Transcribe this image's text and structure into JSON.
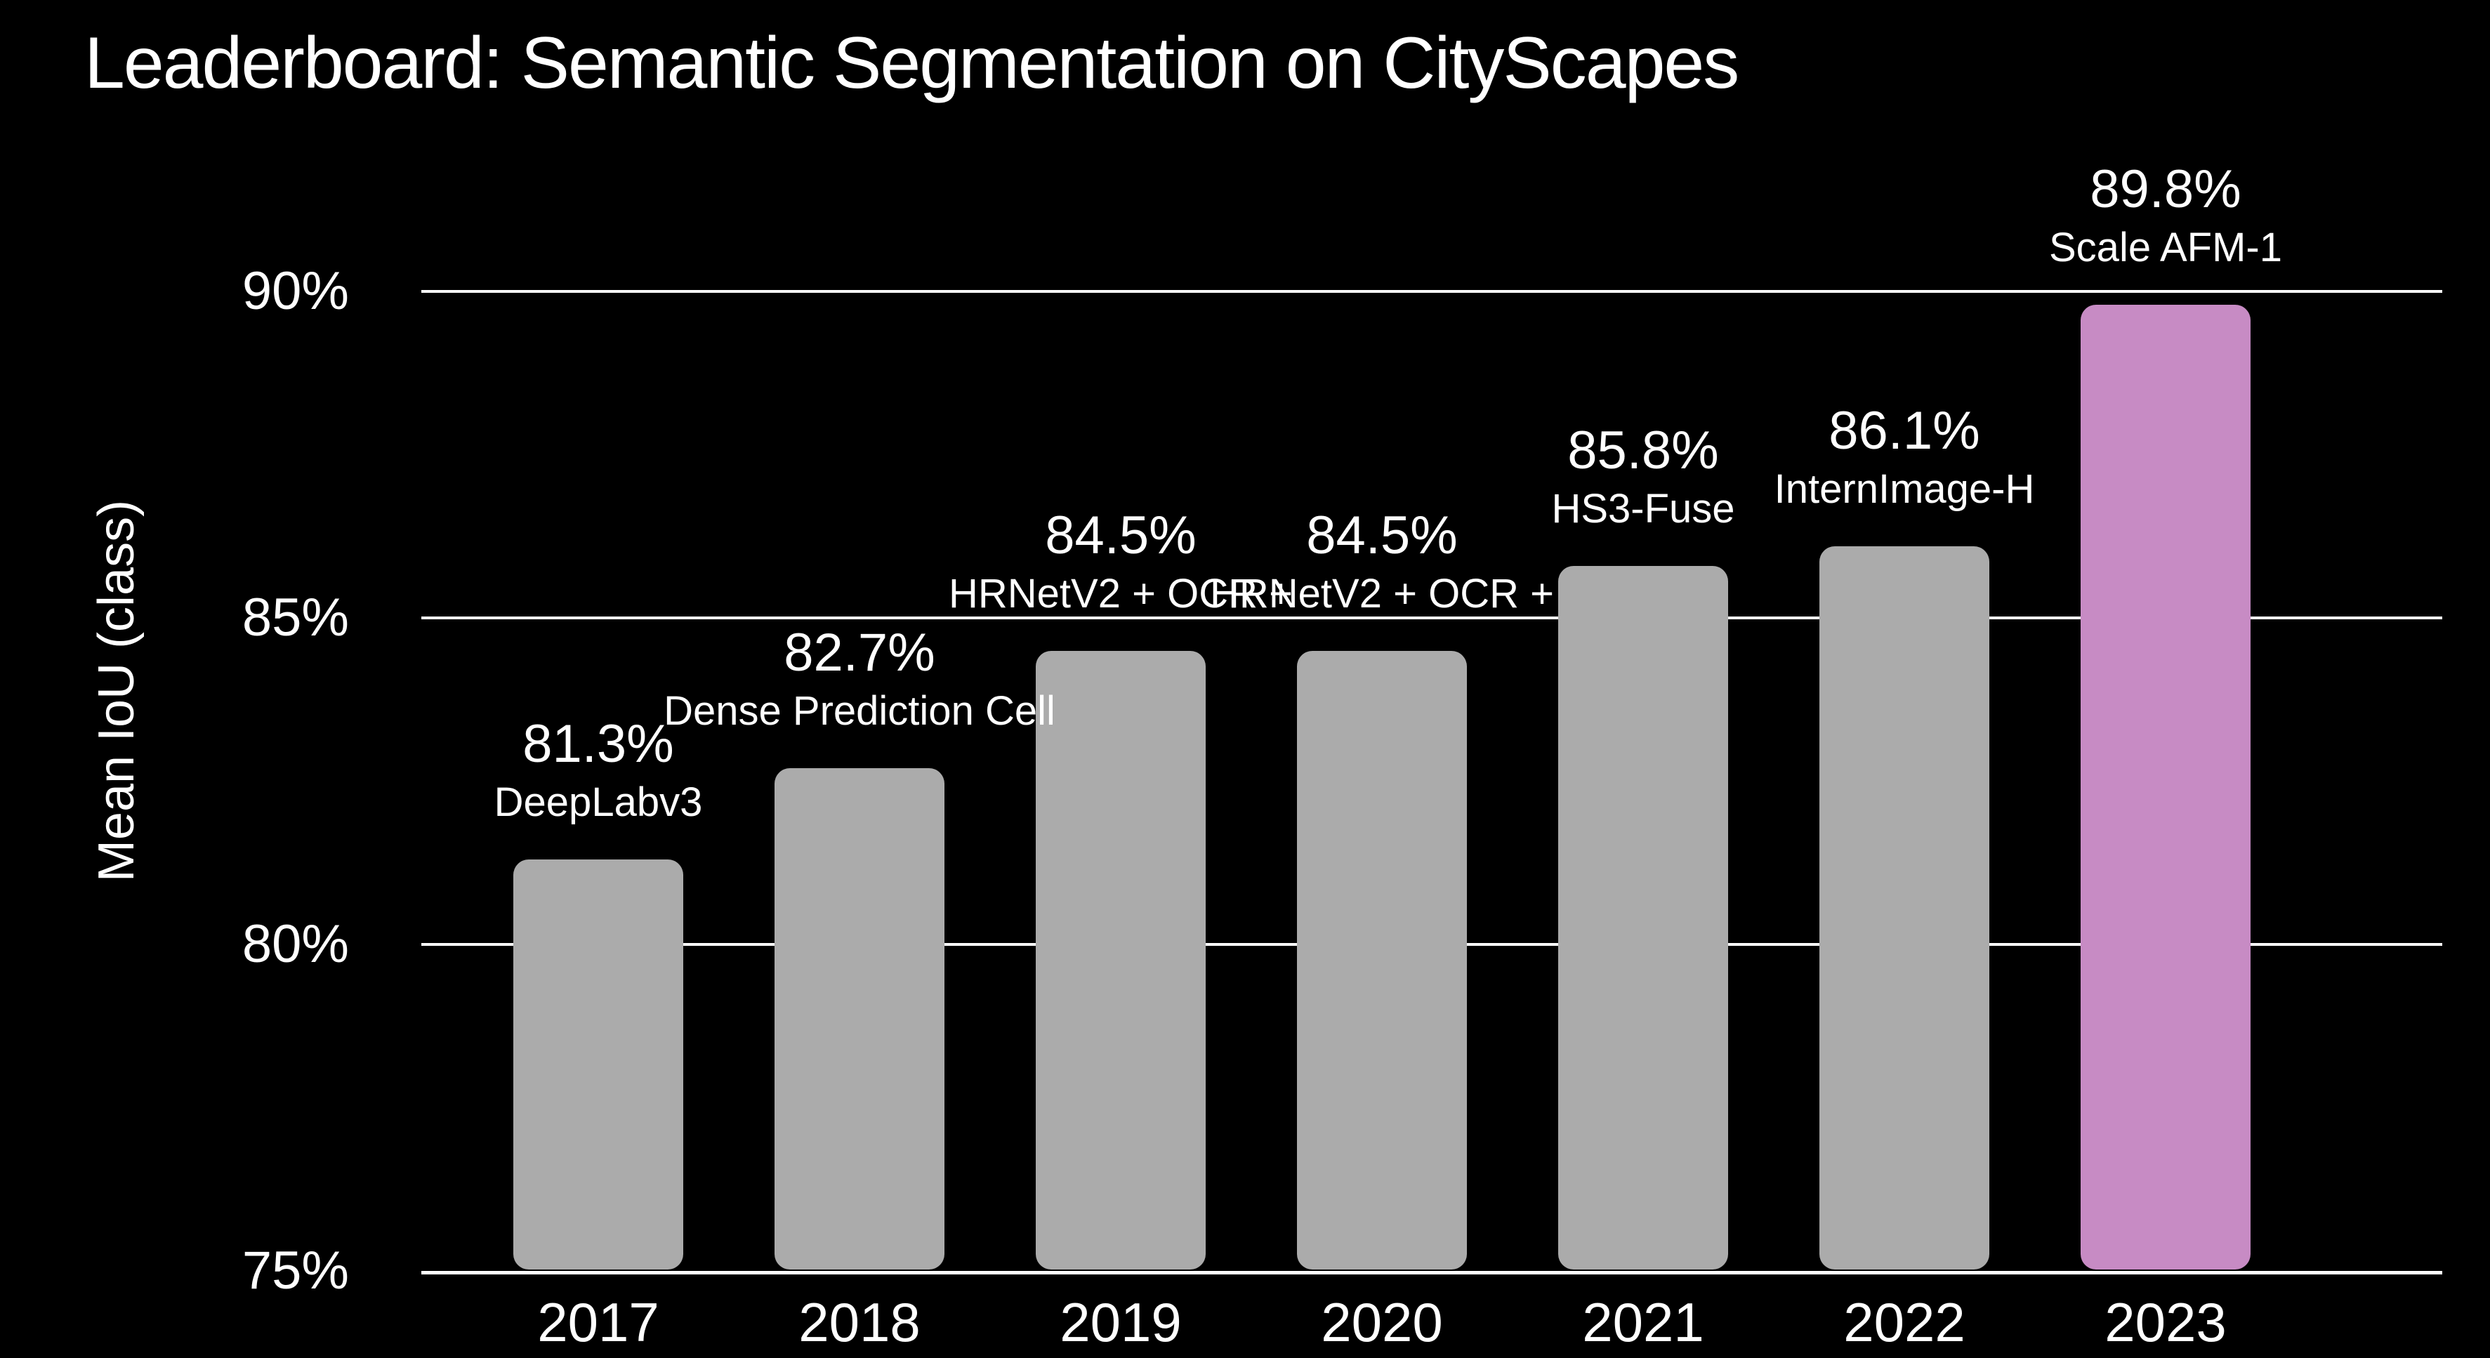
{
  "chart_data": {
    "type": "bar",
    "title": "Leaderboard: Semantic Segmentation on CityScapes",
    "ylabel": "Mean IoU (class)",
    "categories": [
      "2017",
      "2018",
      "2019",
      "2020",
      "2021",
      "2022",
      "2023"
    ],
    "values": [
      81.3,
      82.7,
      84.5,
      84.5,
      85.8,
      86.1,
      89.8
    ],
    "bar_value_labels": [
      "81.3%",
      "82.7%",
      "84.5%",
      "84.5%",
      "85.8%",
      "86.1%",
      "89.8%"
    ],
    "bar_model_labels": [
      "DeepLabv3",
      "Dense Prediction Cell",
      "HRNetV2 + OCR +",
      "HRNetV2 + OCR +",
      "HS3-Fuse",
      "InternImage-H",
      "Scale AFM-1"
    ],
    "ylim": [
      75,
      90.8
    ],
    "yticks": [
      75,
      80,
      85,
      90
    ],
    "ytick_labels": [
      "75%",
      "80%",
      "85%",
      "90%"
    ],
    "grid": "horizontal gridlines at yticks, behind bars; baseline in front",
    "legend": "none",
    "highlight_index": 6,
    "colors": {
      "background": "#000000",
      "text": "#ffffff",
      "bar": "#ababab",
      "highlight_bar": "#c78bc4",
      "gridline": "#ffffff"
    }
  }
}
